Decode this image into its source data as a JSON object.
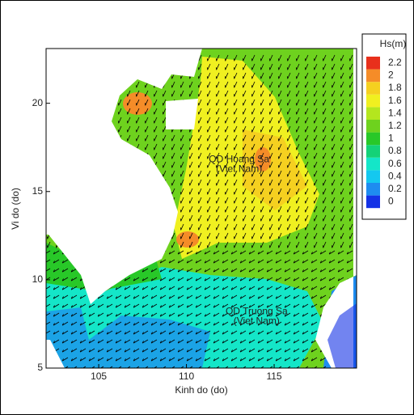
{
  "chart_data": {
    "type": "contour-map",
    "xlabel": "Kinh do (do)",
    "ylabel": "Vi do (do)",
    "xlim": [
      102,
      119.7
    ],
    "ylim": [
      5,
      23.1
    ],
    "xticks": [
      105,
      110,
      115
    ],
    "yticks": [
      5,
      10,
      15,
      20
    ],
    "annotations": [
      {
        "lines": [
          "QD Hoang Sa",
          "(Viet Nam)"
        ],
        "x": 113,
        "y": 16.8
      },
      {
        "lines": [
          "QD Truong Sa",
          "(Viet Nam)"
        ],
        "x": 114,
        "y": 8.2
      }
    ],
    "colorbar": {
      "title": "Hs(m)",
      "levels": [
        0,
        0.2,
        0.4,
        0.6,
        0.8,
        1,
        1.2,
        1.4,
        1.6,
        1.8,
        2,
        2.2
      ],
      "colors": [
        "#1432e6",
        "#1e8cf0",
        "#14c8f0",
        "#14e6c8",
        "#14d278",
        "#28c828",
        "#6ed21e",
        "#b4e61e",
        "#f0f020",
        "#f5d020",
        "#f58c28",
        "#e8301c"
      ]
    }
  }
}
